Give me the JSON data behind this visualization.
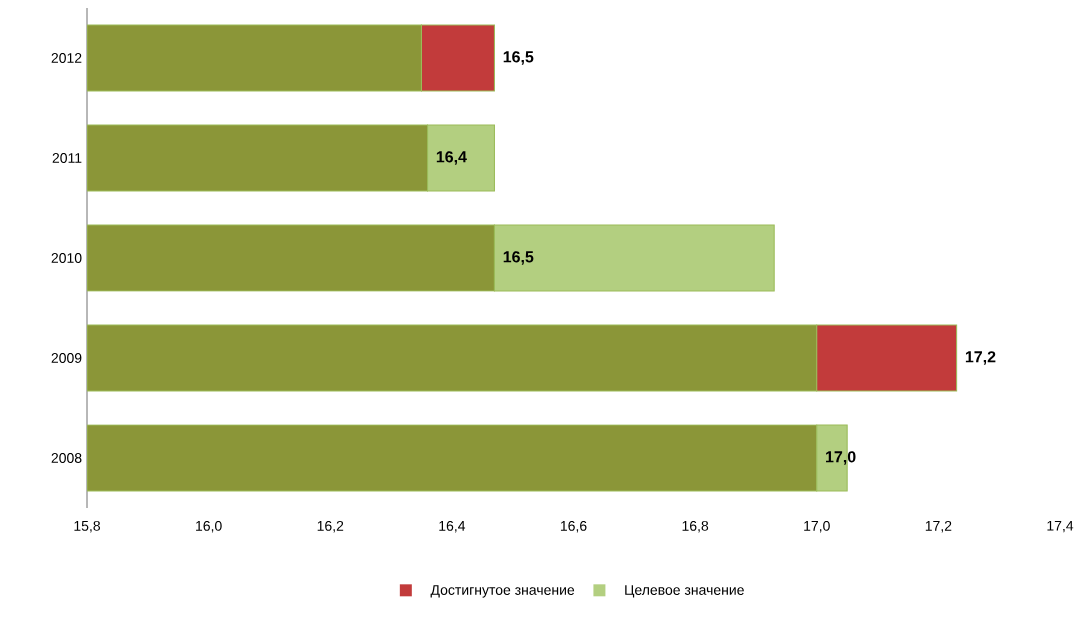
{
  "chart_data": {
    "type": "bar",
    "orientation": "horizontal",
    "stacked": true,
    "categories": [
      "2012",
      "2011",
      "2010",
      "2009",
      "2008"
    ],
    "series": [
      {
        "color": "#8b9638",
        "base": [
          15.8,
          15.8,
          15.8,
          15.8,
          15.8
        ],
        "values": [
          0.55,
          0.56,
          0.67,
          1.2,
          1.2
        ]
      },
      {
        "name": "Достигнутое значение",
        "color": "#c23b3b",
        "base": [
          16.35,
          null,
          null,
          17.0,
          null
        ],
        "values": [
          0.12,
          null,
          null,
          0.23,
          null
        ]
      },
      {
        "name": "Целевое значение",
        "color": "#b3cf80",
        "base": [
          null,
          16.36,
          16.47,
          null,
          17.0
        ],
        "values": [
          null,
          0.11,
          0.46,
          null,
          0.05
        ]
      }
    ],
    "annotations": [
      {
        "text": "16,5",
        "x": 16.47,
        "y": "2012"
      },
      {
        "text": "16,4",
        "x": 16.36,
        "y": "2011"
      },
      {
        "text": "16,5",
        "x": 16.47,
        "y": "2010"
      },
      {
        "text": "17,2",
        "x": 17.23,
        "y": "2009"
      },
      {
        "text": "17,0",
        "x": 17.0,
        "y": "2008"
      }
    ],
    "xlim": [
      15.8,
      17.4
    ],
    "xticks": [
      {
        "value": 15.8,
        "label": "15,8"
      },
      {
        "value": 16.0,
        "label": "16,0"
      },
      {
        "value": 16.2,
        "label": "16,2"
      },
      {
        "value": 16.4,
        "label": "16,4"
      },
      {
        "value": 16.6,
        "label": "16,6"
      },
      {
        "value": 16.8,
        "label": "16,8"
      },
      {
        "value": 17.0,
        "label": "17,0"
      },
      {
        "value": 17.2,
        "label": "17,2"
      },
      {
        "value": 17.4,
        "label": "17,4"
      }
    ],
    "legend": "bottom"
  }
}
